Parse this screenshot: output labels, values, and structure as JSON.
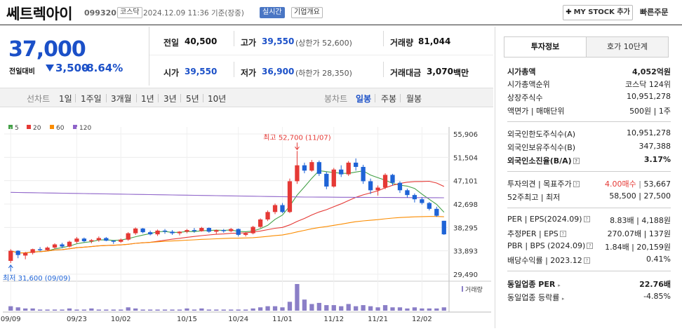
{
  "header": {
    "stock_name": "쎄트렉아이",
    "stock_code": "099320",
    "market": "코스닥",
    "datetime": "2024.12.09 11:36 기준(장중)",
    "live_badge": "실시간",
    "info_badge": "기업개요",
    "mystock_button": "MY STOCK 추가",
    "quick_order": "빠른주문"
  },
  "price": {
    "current": "37,000",
    "prev_label": "전일대비",
    "change": "3,500",
    "rate": "-8.64%"
  },
  "summary": {
    "prev_close_label": "전일",
    "prev_close": "40,500",
    "high_label": "고가",
    "high": "39,550",
    "upper_limit": "(상한가 52,600)",
    "volume_label": "거래량",
    "volume": "81,044",
    "open_label": "시가",
    "open": "39,550",
    "low_label": "저가",
    "low": "36,900",
    "lower_limit": "(하한가 28,350)",
    "amount_label": "거래대금",
    "amount": "3,070",
    "amount_unit": "백만"
  },
  "chart_tabs": {
    "line_chart": "선차트",
    "periods": [
      "1일",
      "1주일",
      "3개월",
      "1년",
      "3년",
      "5년",
      "10년"
    ],
    "candle_chart": "봉차트",
    "candle_periods": [
      "일봉",
      "주봉",
      "월봉"
    ],
    "active_candle": "일봉"
  },
  "legend": [
    {
      "label": "5",
      "color": "#43a047"
    },
    {
      "label": "20",
      "color": "#e53935"
    },
    {
      "label": "60",
      "color": "#fb8c00"
    },
    {
      "label": "120",
      "color": "#8e63c9"
    }
  ],
  "chart_data": {
    "type": "candlestick",
    "y_ticks": [
      "55,906",
      "51,504",
      "47,101",
      "42,698",
      "38,295",
      "33,893",
      "29,490"
    ],
    "ylim": [
      29490,
      55906
    ],
    "x_ticks": [
      "09/09",
      "09/23",
      "10/02",
      "10/15",
      "10/24",
      "11/01",
      "11/12",
      "11/21",
      "12/02"
    ],
    "max_annotation": "최고 52,700 (11/07)",
    "min_annotation": "최저 31,600 (09/09)",
    "volume_label": "거래량",
    "candles": [
      [
        32000,
        34200,
        31600,
        33900
      ],
      [
        33900,
        34000,
        32500,
        33100
      ],
      [
        33000,
        33700,
        32300,
        33500
      ],
      [
        33500,
        34300,
        33200,
        34200
      ],
      [
        34200,
        34600,
        33800,
        34000
      ],
      [
        34000,
        34700,
        33900,
        34500
      ],
      [
        34500,
        35300,
        34200,
        35100
      ],
      [
        35100,
        35400,
        34400,
        34700
      ],
      [
        34700,
        35800,
        34500,
        35600
      ],
      [
        35600,
        36500,
        35300,
        36200
      ],
      [
        36200,
        36400,
        35500,
        35700
      ],
      [
        35700,
        36100,
        35300,
        35900
      ],
      [
        35900,
        36600,
        35600,
        36300
      ],
      [
        36300,
        36500,
        35700,
        35800
      ],
      [
        35800,
        35900,
        35200,
        35600
      ],
      [
        35600,
        36200,
        35400,
        36000
      ],
      [
        36000,
        37400,
        35800,
        37200
      ],
      [
        37200,
        38300,
        36900,
        38100
      ],
      [
        38100,
        38200,
        37200,
        37400
      ],
      [
        37400,
        37700,
        36800,
        37000
      ],
      [
        37000,
        37900,
        36700,
        37700
      ],
      [
        37700,
        38000,
        37100,
        37500
      ],
      [
        37500,
        37800,
        36900,
        37200
      ],
      [
        37200,
        37600,
        36800,
        37500
      ],
      [
        37500,
        38000,
        37200,
        37800
      ],
      [
        37800,
        38200,
        37300,
        37600
      ],
      [
        37600,
        38400,
        37500,
        38200
      ],
      [
        38200,
        38300,
        37300,
        37500
      ],
      [
        37500,
        37900,
        37100,
        37800
      ],
      [
        37800,
        38000,
        37300,
        37600
      ],
      [
        37600,
        38200,
        37400,
        38000
      ],
      [
        38000,
        38100,
        36600,
        36900
      ],
      [
        36900,
        37400,
        36600,
        37200
      ],
      [
        37200,
        38600,
        37000,
        38400
      ],
      [
        38400,
        40000,
        38200,
        39800
      ],
      [
        39800,
        41500,
        39500,
        41200
      ],
      [
        41200,
        42800,
        40800,
        42500
      ],
      [
        42500,
        42900,
        41000,
        41200
      ],
      [
        41200,
        47500,
        41000,
        47000
      ],
      [
        47000,
        52700,
        46500,
        50000
      ],
      [
        50000,
        50500,
        48500,
        49000
      ],
      [
        49000,
        51000,
        48800,
        50600
      ],
      [
        50600,
        50900,
        48000,
        48400
      ],
      [
        48400,
        48800,
        45500,
        46000
      ],
      [
        46000,
        49500,
        45800,
        49200
      ],
      [
        49200,
        50000,
        47800,
        48300
      ],
      [
        48300,
        50800,
        48000,
        50500
      ],
      [
        50500,
        51300,
        49000,
        49700
      ],
      [
        49700,
        50100,
        46500,
        47000
      ],
      [
        47000,
        47500,
        44600,
        45300
      ],
      [
        45300,
        46200,
        44300,
        45800
      ],
      [
        45800,
        48500,
        45500,
        48200
      ],
      [
        48200,
        48400,
        46200,
        46700
      ],
      [
        46700,
        47000,
        44800,
        45300
      ],
      [
        45300,
        45600,
        43900,
        44400
      ],
      [
        44400,
        44700,
        43000,
        43600
      ],
      [
        43600,
        44000,
        42600,
        42900
      ],
      [
        42900,
        43100,
        41500,
        41800
      ],
      [
        41800,
        42200,
        40300,
        40500
      ],
      [
        39550,
        39550,
        36900,
        37000
      ]
    ],
    "volumes": [
      4,
      3,
      2,
      2,
      1,
      1,
      1,
      1,
      2,
      1,
      1,
      2,
      1,
      1,
      1,
      1,
      3,
      2,
      1,
      1,
      1,
      1,
      1,
      1,
      2,
      1,
      2,
      1,
      1,
      1,
      1,
      1,
      1,
      2,
      3,
      4,
      4,
      3,
      8,
      24,
      10,
      6,
      7,
      5,
      5,
      4,
      6,
      4,
      5,
      4,
      3,
      5,
      3,
      3,
      2,
      3,
      2,
      2,
      2,
      3
    ],
    "volume_max": 24
  },
  "right_panel": {
    "tab_active": "투자정보",
    "tab_other": "호가 10단계",
    "rows1": [
      {
        "label": "시가총액",
        "value": "4,052억원"
      },
      {
        "label": "시가총액순위",
        "value": "코스닥 124위"
      },
      {
        "label": "상장주식수",
        "value": "10,951,278"
      },
      {
        "label": "액면가 | 매매단위",
        "value": "500원 | 1주"
      }
    ],
    "rows2": [
      {
        "label": "외국인한도주식수(A)",
        "value": "10,951,278"
      },
      {
        "label": "외국인보유주식수(B)",
        "value": "347,388"
      },
      {
        "label": "외국인소진율(B/A)",
        "value": "3.17%"
      }
    ],
    "rows3": [
      {
        "label": "투자의견 | 목표주가",
        "value_red": "4.00매수",
        "value": "53,667"
      },
      {
        "label": "52주최고 | 최저",
        "value": "58,500 | 27,500"
      }
    ],
    "rows4": [
      {
        "label": "PER | EPS(2024.09)",
        "value": "8.83배 | 4,188원"
      },
      {
        "label": "추정PER | EPS",
        "value": "270.07배 | 137원"
      },
      {
        "label": "PBR | BPS (2024.09)",
        "value": "1.84배 | 20,159원"
      },
      {
        "label": "배당수익률 | 2023.12",
        "value": "0.41%"
      }
    ],
    "rows5": [
      {
        "label": "동일업종 PER",
        "value": "22.76배"
      },
      {
        "label": "동일업종 등락률",
        "value": "-4.85%"
      }
    ]
  }
}
